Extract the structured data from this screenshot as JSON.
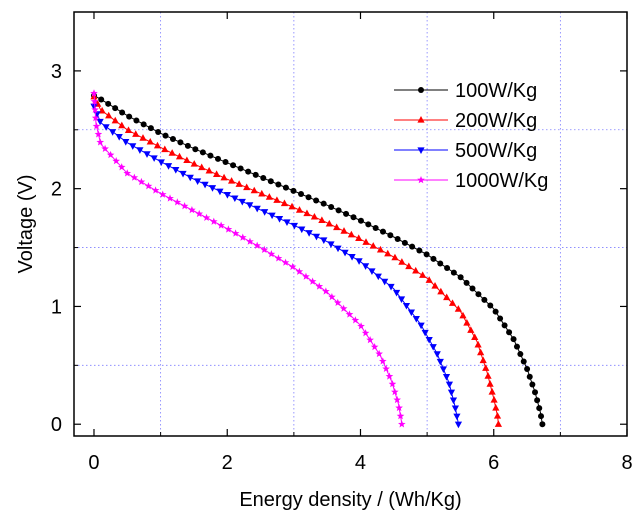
{
  "chart_data": {
    "type": "line",
    "title": "",
    "xlabel": "Energy density / (Wh/Kg)",
    "ylabel": "Voltage (V)",
    "xlim": [
      -0.3,
      8
    ],
    "ylim": [
      -0.1,
      3.5
    ],
    "x_ticks": [
      0,
      2,
      4,
      6,
      8
    ],
    "x_tick_labels": [
      "0",
      "2",
      "4",
      "6",
      "8"
    ],
    "y_ticks": [
      0,
      1,
      2,
      3
    ],
    "y_tick_labels": [
      "0",
      "1",
      "2",
      "3"
    ],
    "grid": true,
    "grid_x": [
      1,
      3,
      5,
      7
    ],
    "grid_y": [
      0.5,
      1.5,
      2.5
    ],
    "legend_position": "top-right",
    "series": [
      {
        "name": "100W/Kg",
        "color": "#000000",
        "marker": "circle",
        "points": [
          [
            0,
            2.79
          ],
          [
            0.1,
            2.76
          ],
          [
            0.5,
            2.62
          ],
          [
            1,
            2.47
          ],
          [
            1.5,
            2.34
          ],
          [
            2,
            2.22
          ],
          [
            2.5,
            2.1
          ],
          [
            3,
            1.98
          ],
          [
            3.5,
            1.86
          ],
          [
            4,
            1.73
          ],
          [
            4.5,
            1.59
          ],
          [
            5,
            1.44
          ],
          [
            5.5,
            1.25
          ],
          [
            6,
            0.98
          ],
          [
            6.3,
            0.72
          ],
          [
            6.5,
            0.47
          ],
          [
            6.62,
            0.27
          ],
          [
            6.7,
            0.1
          ],
          [
            6.73,
            0
          ]
        ]
      },
      {
        "name": "200W/Kg",
        "color": "#ff0000",
        "marker": "triangle-up",
        "points": [
          [
            0,
            2.78
          ],
          [
            0.1,
            2.67
          ],
          [
            0.5,
            2.5
          ],
          [
            1,
            2.35
          ],
          [
            1.5,
            2.21
          ],
          [
            2,
            2.08
          ],
          [
            2.5,
            1.96
          ],
          [
            3,
            1.84
          ],
          [
            3.5,
            1.71
          ],
          [
            4,
            1.57
          ],
          [
            4.5,
            1.42
          ],
          [
            5,
            1.24
          ],
          [
            5.5,
            0.96
          ],
          [
            5.75,
            0.7
          ],
          [
            5.9,
            0.44
          ],
          [
            6,
            0.22
          ],
          [
            6.06,
            0.06
          ],
          [
            6.07,
            0
          ]
        ]
      },
      {
        "name": "500W/Kg",
        "color": "#0000ff",
        "marker": "triangle-down",
        "points": [
          [
            0,
            2.7
          ],
          [
            0.1,
            2.56
          ],
          [
            0.5,
            2.39
          ],
          [
            1,
            2.23
          ],
          [
            1.5,
            2.08
          ],
          [
            2,
            1.95
          ],
          [
            2.5,
            1.82
          ],
          [
            3,
            1.69
          ],
          [
            3.5,
            1.55
          ],
          [
            4,
            1.38
          ],
          [
            4.5,
            1.15
          ],
          [
            4.9,
            0.85
          ],
          [
            5.15,
            0.6
          ],
          [
            5.33,
            0.35
          ],
          [
            5.42,
            0.15
          ],
          [
            5.46,
            0.03
          ],
          [
            5.47,
            0
          ]
        ]
      },
      {
        "name": "1000W/Kg",
        "color": "#ff00ff",
        "marker": "star",
        "points": [
          [
            0,
            2.81
          ],
          [
            0.03,
            2.55
          ],
          [
            0.1,
            2.38
          ],
          [
            0.5,
            2.13
          ],
          [
            1,
            1.96
          ],
          [
            1.5,
            1.81
          ],
          [
            2,
            1.66
          ],
          [
            2.5,
            1.5
          ],
          [
            3,
            1.33
          ],
          [
            3.5,
            1.12
          ],
          [
            4,
            0.84
          ],
          [
            4.3,
            0.58
          ],
          [
            4.47,
            0.36
          ],
          [
            4.57,
            0.17
          ],
          [
            4.61,
            0.04
          ],
          [
            4.62,
            0
          ]
        ]
      }
    ]
  }
}
